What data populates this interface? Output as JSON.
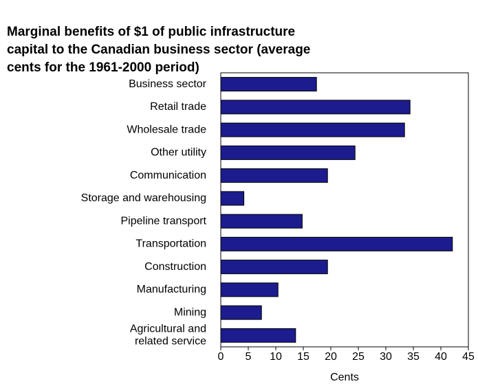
{
  "chart_data": {
    "type": "barh",
    "title": "Marginal benefits of $1 of public infrastructure\ncapital to the Canadian business sector (average\ncents for the 1961-2000 period)",
    "categories": [
      "Business sector",
      "Retail trade",
      "Wholesale trade",
      "Other utility",
      "Communication",
      "Storage and warehousing",
      "Pipeline transport",
      "Transportation",
      "Construction",
      "Manufacturing",
      "Mining",
      "Agricultural and\nrelated service"
    ],
    "values": [
      17.4,
      34.4,
      33.4,
      24.4,
      19.4,
      4.2,
      14.8,
      42.1,
      19.4,
      10.4,
      7.4,
      13.6
    ],
    "color": "#1c1c8e",
    "xlabel": "Cents",
    "xlim": [
      0,
      45
    ],
    "xticks": [
      0,
      5,
      10,
      15,
      20,
      25,
      30,
      35,
      40,
      45
    ],
    "grid": false
  }
}
